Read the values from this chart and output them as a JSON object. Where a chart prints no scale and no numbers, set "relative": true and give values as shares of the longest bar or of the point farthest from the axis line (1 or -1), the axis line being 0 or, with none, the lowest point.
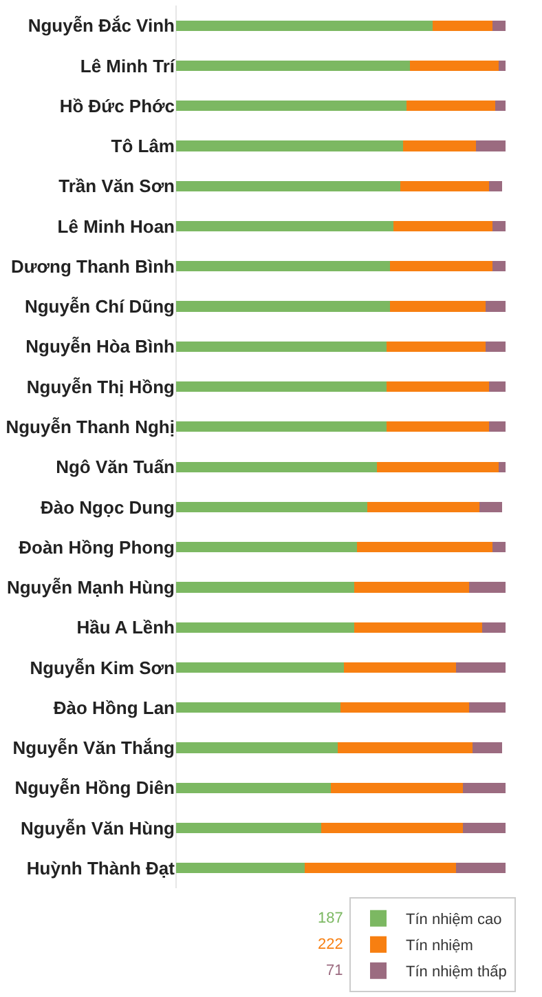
{
  "chart_data": {
    "type": "bar",
    "orientation": "horizontal",
    "stacked": true,
    "relative": true,
    "legend": "bottom",
    "grid": false,
    "annotations": [
      "187",
      "222",
      "71"
    ],
    "categories": [
      "Nguyễn Đắc Vinh",
      "Lê Minh Trí",
      "Hồ Đức Phớc",
      "Tô Lâm",
      "Trần Văn Sơn",
      "Lê Minh Hoan",
      "Dương Thanh Bình",
      "Nguyễn Chí Dũng",
      "Nguyễn Hòa Bình",
      "Nguyễn Thị Hồng",
      "Nguyễn Thanh Nghị",
      "Ngô Văn Tuấn",
      "Đào Ngọc Dung",
      "Đoàn Hồng Phong",
      "Nguyễn Mạnh Hùng",
      "Hầu A Lềnh",
      "Nguyễn Kim Sơn",
      "Đào Hồng Lan",
      "Nguyễn Văn Thắng",
      "Nguyễn Hồng Diên",
      "Nguyễn Văn Hùng",
      "Huỳnh Thành Đạt"
    ],
    "series": [
      {
        "name": "Tín nhiệm cao",
        "color": "#7cb862",
        "values": [
          0.78,
          0.71,
          0.7,
          0.69,
          0.68,
          0.66,
          0.65,
          0.65,
          0.64,
          0.64,
          0.64,
          0.61,
          0.58,
          0.55,
          0.54,
          0.54,
          0.51,
          0.5,
          0.49,
          0.47,
          0.44,
          0.39
        ]
      },
      {
        "name": "Tín nhiệm",
        "color": "#f77f11",
        "values": [
          0.18,
          0.27,
          0.27,
          0.22,
          0.27,
          0.3,
          0.31,
          0.29,
          0.3,
          0.31,
          0.31,
          0.37,
          0.34,
          0.41,
          0.35,
          0.39,
          0.34,
          0.39,
          0.41,
          0.4,
          0.43,
          0.46
        ]
      },
      {
        "name": "Tín nhiệm thấp",
        "color": "#9b6b80",
        "values": [
          0.04,
          0.02,
          0.03,
          0.09,
          0.04,
          0.04,
          0.04,
          0.06,
          0.06,
          0.05,
          0.05,
          0.02,
          0.07,
          0.04,
          0.11,
          0.07,
          0.15,
          0.11,
          0.09,
          0.13,
          0.13,
          0.15
        ]
      }
    ]
  }
}
